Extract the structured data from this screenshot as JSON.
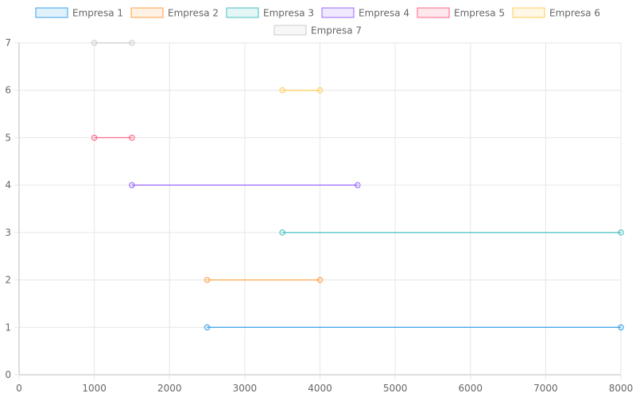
{
  "chart_data": {
    "type": "line",
    "title": "",
    "xlabel": "",
    "ylabel": "",
    "xlim": [
      0,
      8000
    ],
    "ylim": [
      0,
      7
    ],
    "x_ticks": [
      0,
      1000,
      2000,
      3000,
      4000,
      5000,
      6000,
      7000,
      8000
    ],
    "y_ticks": [
      0,
      1,
      2,
      3,
      4,
      5,
      6,
      7
    ],
    "grid": true,
    "legend_position": "top",
    "series": [
      {
        "name": "Empresa 1",
        "color": "#36a2eb",
        "points": [
          {
            "x": 2500,
            "y": 1
          },
          {
            "x": 8000,
            "y": 1
          }
        ]
      },
      {
        "name": "Empresa 2",
        "color": "#ff9f40",
        "points": [
          {
            "x": 2500,
            "y": 2
          },
          {
            "x": 4000,
            "y": 2
          }
        ]
      },
      {
        "name": "Empresa 3",
        "color": "#4bc0c0",
        "points": [
          {
            "x": 3500,
            "y": 3
          },
          {
            "x": 8000,
            "y": 3
          }
        ]
      },
      {
        "name": "Empresa 4",
        "color": "#9966ff",
        "points": [
          {
            "x": 1500,
            "y": 4
          },
          {
            "x": 4500,
            "y": 4
          }
        ]
      },
      {
        "name": "Empresa 5",
        "color": "#ff6384",
        "points": [
          {
            "x": 1000,
            "y": 5
          },
          {
            "x": 1500,
            "y": 5
          }
        ]
      },
      {
        "name": "Empresa 6",
        "color": "#ffcd56",
        "points": [
          {
            "x": 3500,
            "y": 6
          },
          {
            "x": 4000,
            "y": 6
          }
        ]
      },
      {
        "name": "Empresa 7",
        "color": "#c9cbcf",
        "points": [
          {
            "x": 1000,
            "y": 7
          },
          {
            "x": 1500,
            "y": 7
          }
        ]
      }
    ]
  }
}
